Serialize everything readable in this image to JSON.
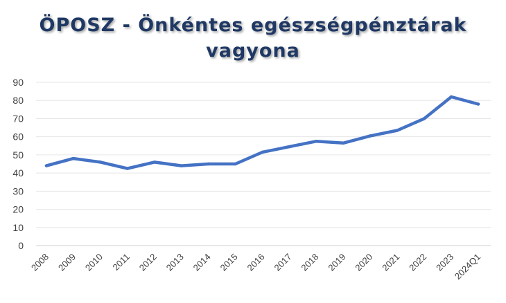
{
  "chart_data": {
    "type": "line",
    "title_lines": [
      "ÖPOSZ - Önkéntes egészségpénztárak",
      "vagyona"
    ],
    "xlabel": "",
    "ylabel": "",
    "ylim": [
      0,
      90
    ],
    "yticks": [
      "0",
      "10",
      "20",
      "30",
      "40",
      "50",
      "60",
      "70",
      "80",
      "90"
    ],
    "grid": true,
    "legend": "none",
    "categories": [
      "2008",
      "2009",
      "2010",
      "2011",
      "2012",
      "2013",
      "2014",
      "2015",
      "2016",
      "2017",
      "2018",
      "2019",
      "2020",
      "2021",
      "2022",
      "2023",
      "2024Q1"
    ],
    "series": [
      {
        "color": "#4472c4",
        "values": [
          44,
          48,
          46,
          42.5,
          46,
          44,
          45,
          45,
          51.5,
          54.5,
          57.5,
          56.5,
          60.5,
          63.5,
          70,
          82,
          78
        ]
      }
    ]
  }
}
